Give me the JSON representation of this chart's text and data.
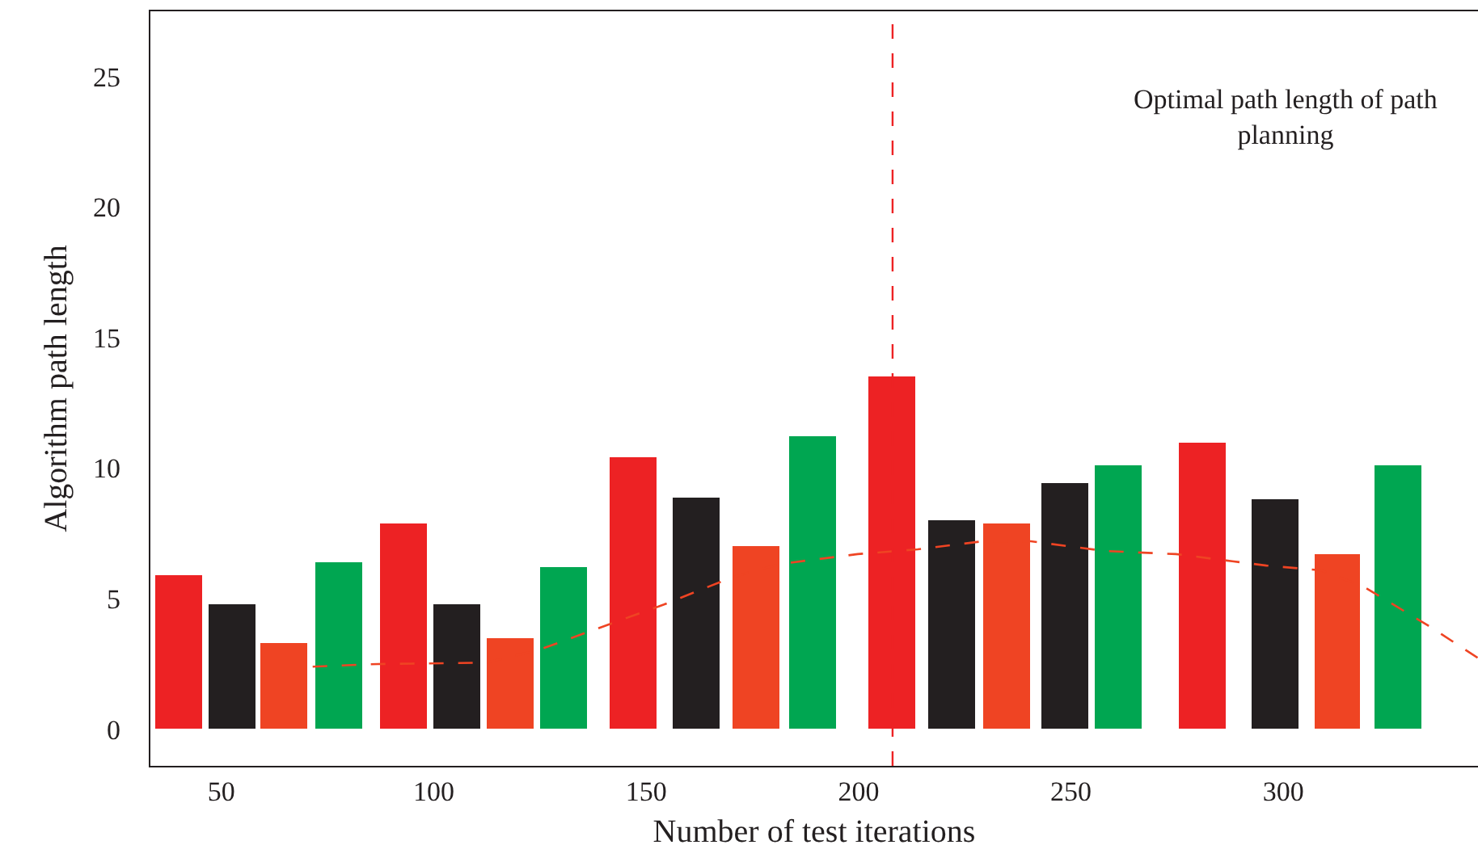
{
  "chart_data": {
    "type": "bar",
    "xlabel": "Number of test iterations",
    "ylabel": "Algorithm path length",
    "annotations": [
      "Optimal path length of path\nplanning"
    ],
    "x": [
      40.1,
      52.5,
      64.8,
      77.8,
      93,
      105.5,
      118,
      130.6,
      147,
      161.8,
      176,
      189,
      207.8,
      222,
      235,
      248.5,
      261,
      281,
      298,
      312.7,
      327
    ],
    "values": [
      5.9,
      4.8,
      3.3,
      6.4,
      7.9,
      4.8,
      3.5,
      6.2,
      10.4,
      8.9,
      7.0,
      11.2,
      13.5,
      8.0,
      7.9,
      9.4,
      10.1,
      11.0,
      8.8,
      6.7,
      10.1
    ],
    "colors": [
      "#ed2224",
      "#231f20",
      "#ef4423",
      "#00a651",
      "#ed2224",
      "#231f20",
      "#ef4423",
      "#00a651",
      "#ed2224",
      "#231f20",
      "#ef4423",
      "#00a651",
      "#ed2224",
      "#231f20",
      "#ef4423",
      "#231f20",
      "#00a651",
      "#ed2224",
      "#231f20",
      "#ef4423",
      "#00a651"
    ],
    "series": [
      {
        "type": "line",
        "color": "#ef4423",
        "line_style": "dashed",
        "x": [
          71.5,
          86.9,
          112.4,
          124.9,
          141.6,
          154.2,
          170.5,
          181.9,
          199.8,
          213.9,
          229.1,
          240.5,
          258,
          274.7,
          296,
          308.9,
          318.8,
          334,
          345.8
        ],
        "values": [
          2.4,
          2.5,
          2.55,
          3.05,
          4.04,
          4.78,
          5.84,
          6.34,
          6.71,
          6.89,
          7.2,
          7.2,
          6.83,
          6.71,
          6.27,
          6.09,
          5.47,
          3.98,
          2.73
        ]
      }
    ],
    "ref_lines": [
      {
        "axis": "x",
        "value": 208,
        "color": "#ed2224",
        "line_style": "dashed"
      }
    ],
    "xlim": [
      33.3,
      345.8
    ],
    "xticks": [
      50,
      100,
      150,
      200,
      250,
      300
    ],
    "ylim": [
      -1.4,
      27.5
    ],
    "yticks": [
      0,
      5,
      10,
      15,
      20,
      25
    ]
  }
}
